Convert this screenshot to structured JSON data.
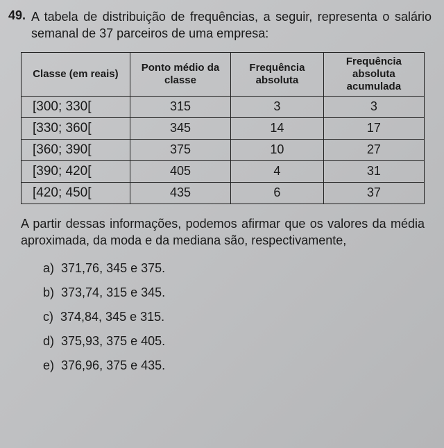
{
  "question": {
    "number": "49.",
    "text_intro": "A tabela de distribuição de frequências, a seguir, representa o salário semanal de 37 parceiros de uma empresa:"
  },
  "table": {
    "type": "table",
    "columns": [
      "Classe (em reais)",
      "Ponto médio da classe",
      "Frequência absoluta",
      "Frequência absoluta acumulada"
    ],
    "col_widths": [
      "27%",
      "25%",
      "23%",
      "25%"
    ],
    "border_color": "#222222",
    "rows": [
      {
        "classe": "[300; 330[",
        "ponto": "315",
        "freq": "3",
        "acum": "3"
      },
      {
        "classe": "[330; 360[",
        "ponto": "345",
        "freq": "14",
        "acum": "17"
      },
      {
        "classe": "[360; 390[",
        "ponto": "375",
        "freq": "10",
        "acum": "27"
      },
      {
        "classe": "[390; 420[",
        "ponto": "405",
        "freq": "4",
        "acum": "31"
      },
      {
        "classe": "[420; 450[",
        "ponto": "435",
        "freq": "6",
        "acum": "37"
      }
    ]
  },
  "after_text": "A partir dessas informações, podemos afirmar que os valores da média aproximada, da moda e da mediana são, respectivamente,",
  "options": [
    {
      "label": "a)",
      "text": "371,76, 345 e 375."
    },
    {
      "label": "b)",
      "text": "373,74, 315 e 345."
    },
    {
      "label": "c)",
      "text": "374,84, 345 e 315."
    },
    {
      "label": "d)",
      "text": "375,93, 375 e 405."
    },
    {
      "label": "e)",
      "text": "376,96, 375 e 435."
    }
  ]
}
